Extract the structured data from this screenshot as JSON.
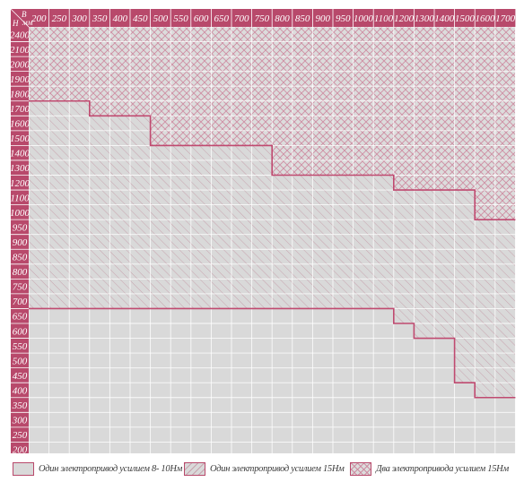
{
  "corner_labels": {
    "top": "B",
    "sub": "мм",
    "left": "H"
  },
  "columns": [
    "200",
    "250",
    "300",
    "350",
    "400",
    "450",
    "500",
    "550",
    "600",
    "650",
    "700",
    "750",
    "800",
    "850",
    "900",
    "950",
    "1000",
    "1100",
    "1200",
    "1300",
    "1400",
    "1500",
    "1600",
    "1700"
  ],
  "rows": [
    "2400",
    "2100",
    "2000",
    "1900",
    "1800",
    "1700",
    "1600",
    "1500",
    "1400",
    "1300",
    "1200",
    "1100",
    "1000",
    "950",
    "900",
    "850",
    "800",
    "750",
    "700",
    "650",
    "600",
    "550",
    "500",
    "450",
    "400",
    "350",
    "300",
    "250",
    "200"
  ],
  "zones": [
    {
      "id": "single-8-10",
      "fill": "#d9d9d9",
      "hatch": "none"
    },
    {
      "id": "single-15",
      "fill": "#d9d9d9",
      "hatch": "diagonal"
    },
    {
      "id": "double-15",
      "fill": "#dedede",
      "hatch": "cross"
    }
  ],
  "boundaries": {
    "upper_limit_single_15": [
      {
        "from_col": 0,
        "to_col": 3,
        "height": "1700"
      },
      {
        "from_col": 3,
        "to_col": 6,
        "height": "1600"
      },
      {
        "from_col": 6,
        "to_col": 12,
        "height": "1400"
      },
      {
        "from_col": 12,
        "to_col": 18,
        "height": "1200"
      },
      {
        "from_col": 18,
        "to_col": 22,
        "height": "1100"
      },
      {
        "from_col": 22,
        "to_col": 24,
        "height": "950"
      }
    ],
    "upper_limit_single_8_10": [
      {
        "from_col": 0,
        "to_col": 18,
        "height": "650"
      },
      {
        "from_col": 18,
        "to_col": 19,
        "height": "600"
      },
      {
        "from_col": 19,
        "to_col": 21,
        "height": "550"
      },
      {
        "from_col": 21,
        "to_col": 22,
        "height": "400"
      },
      {
        "from_col": 22,
        "to_col": 24,
        "height": "350"
      }
    ]
  },
  "legend": [
    {
      "label": "Один электропривод усилием 8- 10Нм",
      "zone": "single-8-10"
    },
    {
      "label": "Один электропривод усилием 15Нм",
      "zone": "single-15"
    },
    {
      "label": "Два электропривода усилием 15Нм",
      "zone": "double-15"
    }
  ],
  "colors": {
    "accent": "#b8496b",
    "grid_line": "#ffffff",
    "outline": "#c04a70",
    "hatch": "#c9889c"
  }
}
